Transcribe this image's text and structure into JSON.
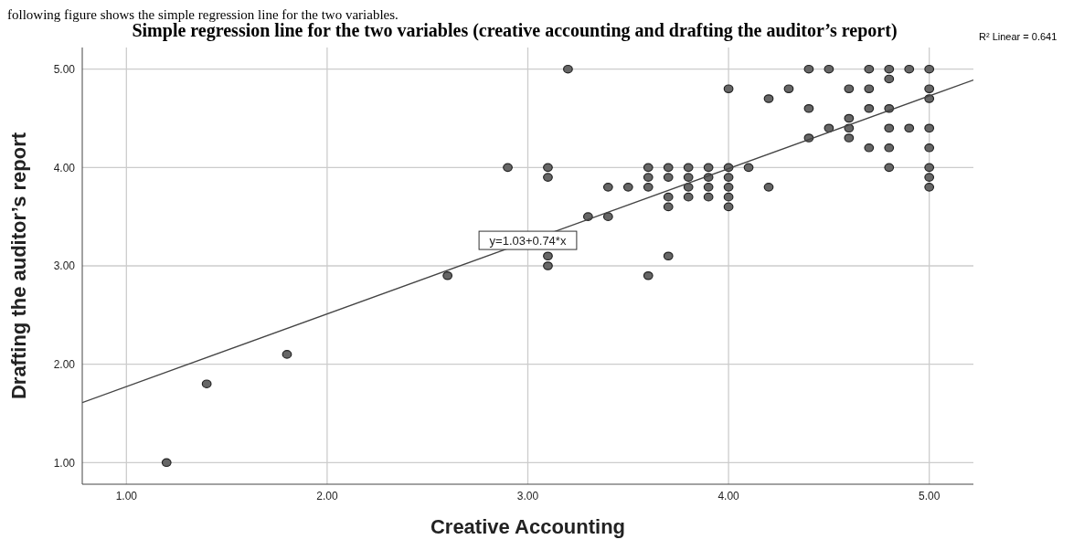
{
  "chart_data": {
    "type": "scatter",
    "title": "Simple regression line for the two variables (creative accounting and drafting the auditor’s report)",
    "xlabel": "Creative Accounting",
    "ylabel": "Drafting the auditor’s report",
    "xlim": [
      0.78,
      5.22
    ],
    "ylim": [
      0.78,
      5.22
    ],
    "xticks": [
      {
        "value": 1,
        "label": "1.00"
      },
      {
        "value": 2,
        "label": "2.00"
      },
      {
        "value": 3,
        "label": "3.00"
      },
      {
        "value": 4,
        "label": "4.00"
      },
      {
        "value": 5,
        "label": "5.00"
      }
    ],
    "yticks": [
      {
        "value": 1,
        "label": "1.00"
      },
      {
        "value": 2,
        "label": "2.00"
      },
      {
        "value": 3,
        "label": "3.00"
      },
      {
        "value": 4,
        "label": "4.00"
      },
      {
        "value": 5,
        "label": "5.00"
      }
    ],
    "grid": true,
    "legend": false,
    "series": [
      {
        "marker": "circle",
        "color": "#666666",
        "x": [
          1.2,
          1.4,
          1.8,
          2.6,
          2.9,
          3.1,
          3.1,
          3.1,
          3.1,
          3.2,
          3.3,
          3.4,
          3.4,
          3.5,
          3.6,
          3.6,
          3.6,
          3.6,
          3.7,
          3.7,
          3.7,
          3.7,
          3.7,
          3.8,
          3.8,
          3.8,
          3.8,
          3.9,
          3.9,
          3.9,
          3.9,
          4.0,
          4.0,
          4.0,
          4.0,
          4.0,
          4.0,
          4.1,
          4.2,
          4.2,
          4.3,
          4.4,
          4.4,
          4.4,
          4.5,
          4.5,
          4.6,
          4.6,
          4.6,
          4.6,
          4.7,
          4.7,
          4.7,
          4.7,
          4.8,
          4.8,
          4.8,
          4.8,
          4.8,
          4.8,
          4.9,
          4.9,
          5.0,
          5.0,
          5.0,
          5.0,
          5.0,
          5.0,
          5.0,
          5.0
        ],
        "values": [
          1.0,
          1.8,
          2.1,
          2.9,
          4.0,
          4.0,
          3.9,
          3.1,
          3.0,
          5.0,
          3.5,
          3.8,
          3.5,
          3.8,
          4.0,
          3.9,
          3.8,
          2.9,
          4.0,
          3.9,
          3.7,
          3.6,
          3.1,
          4.0,
          3.9,
          3.8,
          3.7,
          4.0,
          3.9,
          3.8,
          3.7,
          4.8,
          4.0,
          3.9,
          3.8,
          3.7,
          3.6,
          4.0,
          4.7,
          3.8,
          4.8,
          5.0,
          4.6,
          4.3,
          5.0,
          4.4,
          4.8,
          4.5,
          4.4,
          4.3,
          5.0,
          4.8,
          4.6,
          4.2,
          5.0,
          4.9,
          4.6,
          4.4,
          4.2,
          4.0,
          5.0,
          4.4,
          5.0,
          4.8,
          4.7,
          4.4,
          4.2,
          4.0,
          3.9,
          3.8
        ]
      },
      {
        "type": "line",
        "marker": "none",
        "color": "#444444",
        "x": [
          0.78,
          5.22
        ],
        "values": [
          1.61,
          4.89
        ]
      }
    ],
    "annotations": [
      "following figure shows the simple regression line for the two variables.",
      "R² Linear = 0.641",
      {
        "text": "y=1.03+0.74*x",
        "x": 3.0,
        "y": 3.25
      }
    ]
  }
}
